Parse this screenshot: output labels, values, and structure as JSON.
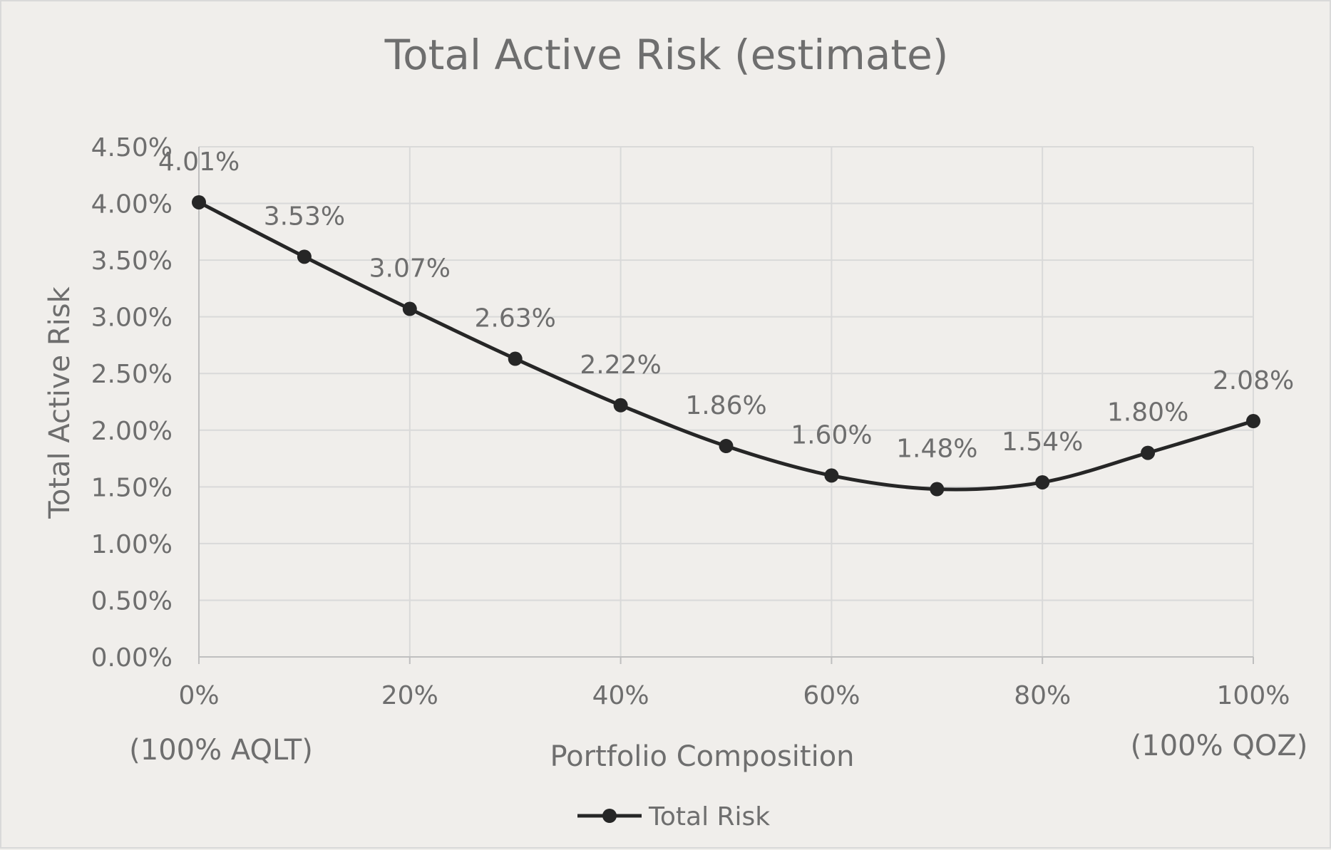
{
  "chart_data": {
    "type": "line",
    "title": "Total Active Risk (estimate)",
    "xlabel": "Portfolio Composition",
    "ylabel": "Total Active Risk",
    "x": [
      0,
      10,
      20,
      30,
      40,
      50,
      60,
      70,
      80,
      90,
      100
    ],
    "x_tick_values": [
      0,
      20,
      40,
      60,
      80,
      100
    ],
    "x_tick_labels": [
      "0%",
      "20%",
      "40%",
      "60%",
      "80%",
      "100%"
    ],
    "x_end_annotations": {
      "left": "(100% AQLT)",
      "right": "(100% QOZ)"
    },
    "xlim": [
      0,
      100
    ],
    "ylim": [
      0,
      4.5
    ],
    "y_tick_values": [
      0,
      0.5,
      1,
      1.5,
      2,
      2.5,
      3,
      3.5,
      4,
      4.5
    ],
    "y_tick_labels": [
      "0.00%",
      "0.50%",
      "1.00%",
      "1.50%",
      "2.00%",
      "2.50%",
      "3.00%",
      "3.50%",
      "4.00%",
      "4.50%"
    ],
    "grid": true,
    "legend_position": "bottom",
    "series": [
      {
        "name": "Total Risk",
        "color": "#262626",
        "values": [
          4.01,
          3.53,
          3.07,
          2.63,
          2.22,
          1.86,
          1.6,
          1.48,
          1.54,
          1.8,
          2.08
        ],
        "data_labels": [
          "4.01%",
          "3.53%",
          "3.07%",
          "2.63%",
          "2.22%",
          "1.86%",
          "1.60%",
          "1.48%",
          "1.54%",
          "1.80%",
          "2.08%"
        ]
      }
    ]
  }
}
